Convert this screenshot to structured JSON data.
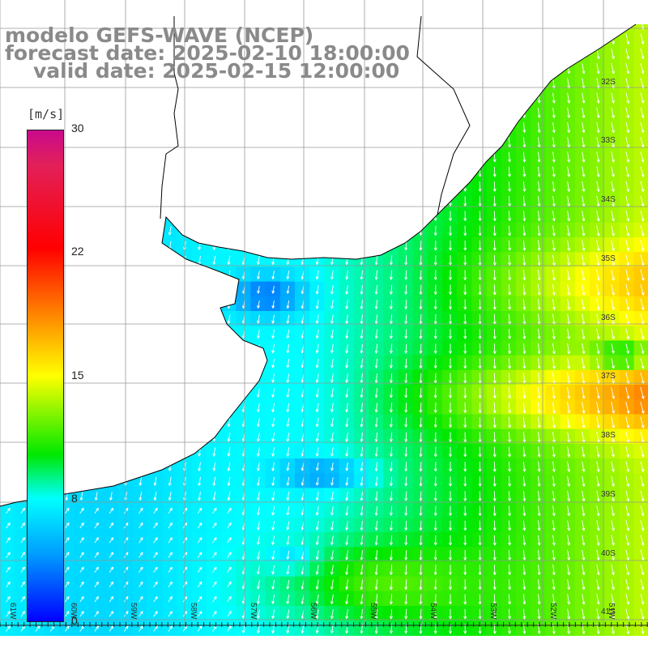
{
  "header": {
    "model": "modelo GEFS-WAVE (NCEP)",
    "forecast": "forecast date: 2025-02-10 18:00:00",
    "valid": "valid date: 2025-02-15 12:00:00"
  },
  "colorbar": {
    "unit": "[m/s]",
    "ticks": [
      "30",
      "22",
      "15",
      "8",
      "0"
    ],
    "colors": [
      "#c80a8c",
      "#ff0000",
      "#ff8000",
      "#ffff00",
      "#00e800",
      "#00ffff",
      "#00a0ff",
      "#0000ff"
    ]
  },
  "lat_labels": [
    "32S",
    "33S",
    "34S",
    "35S",
    "36S",
    "37S",
    "38S",
    "39S",
    "40S",
    "41S"
  ],
  "lon_labels": [
    "61W",
    "60W",
    "59W",
    "58W",
    "57W",
    "56W",
    "55W",
    "54W",
    "53W",
    "52W",
    "51W"
  ],
  "field": {
    "palette_note_hidden": false,
    "land_color": "#ffffff",
    "grid_color": "#999999",
    "coast_color": "#000000",
    "arrow_color": "#ffffff"
  }
}
